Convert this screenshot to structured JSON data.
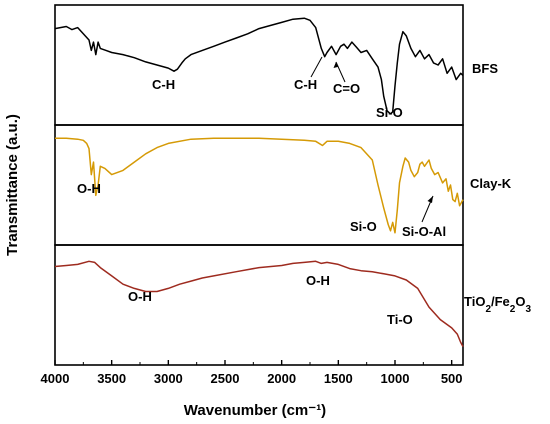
{
  "chart_data": {
    "type": "line",
    "xlabel": "Wavenumber (cm⁻¹)",
    "ylabel": "Transmittance (a.u.)",
    "xlim": [
      4000,
      400
    ],
    "x_reversed": true,
    "xticks": [
      "4000",
      "3500",
      "3000",
      "2500",
      "2000",
      "1500",
      "1000",
      "500"
    ],
    "tick_values": [
      4000,
      3500,
      3000,
      2500,
      2000,
      1500,
      1000,
      500
    ],
    "panels": [
      {
        "name": "BFS",
        "color": "#000000",
        "ylim": [
          0,
          1
        ],
        "x": [
          4000,
          3900,
          3850,
          3800,
          3750,
          3700,
          3680,
          3660,
          3640,
          3620,
          3600,
          3550,
          3500,
          3400,
          3300,
          3200,
          3100,
          3000,
          2950,
          2920,
          2880,
          2850,
          2800,
          2700,
          2600,
          2500,
          2400,
          2300,
          2200,
          2100,
          2000,
          1900,
          1800,
          1750,
          1700,
          1650,
          1620,
          1600,
          1560,
          1520,
          1480,
          1450,
          1420,
          1380,
          1340,
          1300,
          1250,
          1200,
          1150,
          1120,
          1100,
          1070,
          1040,
          1020,
          1000,
          980,
          960,
          930,
          900,
          860,
          820,
          780,
          740,
          700,
          660,
          620,
          580,
          540,
          500,
          460,
          420,
          400
        ],
        "values": [
          0.85,
          0.87,
          0.84,
          0.86,
          0.8,
          0.74,
          0.64,
          0.72,
          0.6,
          0.72,
          0.66,
          0.64,
          0.62,
          0.6,
          0.57,
          0.53,
          0.5,
          0.47,
          0.44,
          0.46,
          0.52,
          0.56,
          0.6,
          0.64,
          0.68,
          0.72,
          0.76,
          0.8,
          0.85,
          0.88,
          0.91,
          0.94,
          0.95,
          0.93,
          0.86,
          0.66,
          0.58,
          0.62,
          0.68,
          0.6,
          0.68,
          0.7,
          0.66,
          0.72,
          0.67,
          0.62,
          0.64,
          0.56,
          0.48,
          0.36,
          0.2,
          0.06,
          0.03,
          0.05,
          0.3,
          0.52,
          0.7,
          0.82,
          0.78,
          0.66,
          0.58,
          0.64,
          0.56,
          0.6,
          0.52,
          0.5,
          0.56,
          0.42,
          0.48,
          0.36,
          0.42,
          0.4
        ]
      },
      {
        "name": "Clay-K",
        "color": "#D59A06",
        "ylim": [
          0,
          1
        ],
        "x": [
          4000,
          3900,
          3800,
          3750,
          3720,
          3700,
          3680,
          3660,
          3640,
          3620,
          3600,
          3560,
          3500,
          3400,
          3300,
          3200,
          3100,
          3000,
          2800,
          2600,
          2400,
          2200,
          2000,
          1800,
          1700,
          1640,
          1620,
          1600,
          1500,
          1400,
          1300,
          1200,
          1150,
          1100,
          1060,
          1040,
          1020,
          1000,
          980,
          960,
          930,
          910,
          880,
          860,
          830,
          800,
          780,
          760,
          740,
          700,
          680,
          650,
          620,
          580,
          550,
          530,
          510,
          490,
          470,
          450,
          430,
          400
        ],
        "values": [
          0.95,
          0.95,
          0.94,
          0.93,
          0.9,
          0.85,
          0.6,
          0.72,
          0.4,
          0.5,
          0.68,
          0.66,
          0.6,
          0.64,
          0.72,
          0.8,
          0.86,
          0.9,
          0.94,
          0.95,
          0.95,
          0.95,
          0.94,
          0.93,
          0.92,
          0.88,
          0.9,
          0.92,
          0.92,
          0.9,
          0.86,
          0.74,
          0.5,
          0.28,
          0.12,
          0.06,
          0.14,
          0.04,
          0.26,
          0.52,
          0.68,
          0.76,
          0.72,
          0.64,
          0.58,
          0.62,
          0.7,
          0.72,
          0.68,
          0.74,
          0.66,
          0.6,
          0.62,
          0.52,
          0.56,
          0.44,
          0.5,
          0.36,
          0.34,
          0.42,
          0.3,
          0.36
        ]
      },
      {
        "name": "TiO2/Fe2O3",
        "color": "#9E2B1F",
        "ylim": [
          0,
          1
        ],
        "x": [
          4000,
          3900,
          3800,
          3700,
          3650,
          3600,
          3500,
          3400,
          3300,
          3200,
          3100,
          3000,
          2900,
          2800,
          2700,
          2600,
          2400,
          2200,
          2000,
          1900,
          1800,
          1700,
          1650,
          1600,
          1500,
          1400,
          1300,
          1200,
          1100,
          1000,
          900,
          800,
          700,
          600,
          500,
          450,
          420,
          400
        ],
        "values": [
          0.87,
          0.88,
          0.89,
          0.92,
          0.91,
          0.86,
          0.78,
          0.7,
          0.66,
          0.63,
          0.63,
          0.66,
          0.7,
          0.73,
          0.76,
          0.78,
          0.82,
          0.86,
          0.88,
          0.9,
          0.91,
          0.92,
          0.9,
          0.91,
          0.89,
          0.85,
          0.83,
          0.82,
          0.8,
          0.78,
          0.74,
          0.66,
          0.48,
          0.36,
          0.28,
          0.22,
          0.14,
          0.1
        ]
      }
    ],
    "annotations": [
      {
        "text": "C-H",
        "panel": 0
      },
      {
        "text": "C-H",
        "panel": 0
      },
      {
        "text": "C=O",
        "panel": 0
      },
      {
        "text": "Si-O",
        "panel": 0
      },
      {
        "text": "O-H",
        "panel": 1
      },
      {
        "text": "Si-O",
        "panel": 1
      },
      {
        "text": "Si-O-Al",
        "panel": 1
      },
      {
        "text": "O-H",
        "panel": 2
      },
      {
        "text": "O-H",
        "panel": 2
      },
      {
        "text": "Ti-O",
        "panel": 2
      }
    ]
  }
}
